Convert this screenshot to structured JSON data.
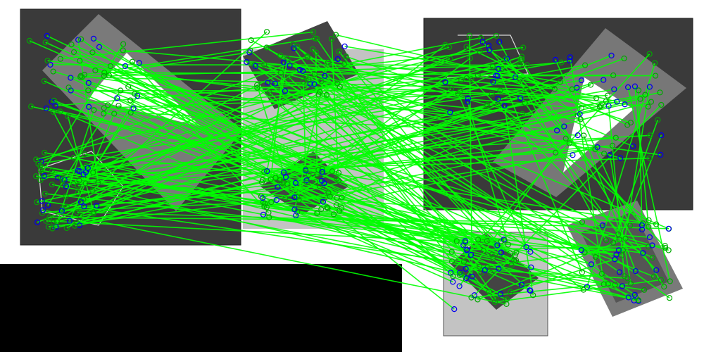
{
  "figure": {
    "description_color_background": "#ffffff",
    "colors": {
      "panel_dark": "#3a3a3a",
      "panel_mid": "#777777",
      "panel_light": "#c3c3c3",
      "panel_white": "#ffffff",
      "black_block": "#000000",
      "match_line": "#00ff00",
      "keypoint_blue": "#0000ee",
      "keypoint_green": "#00a800"
    }
  }
}
